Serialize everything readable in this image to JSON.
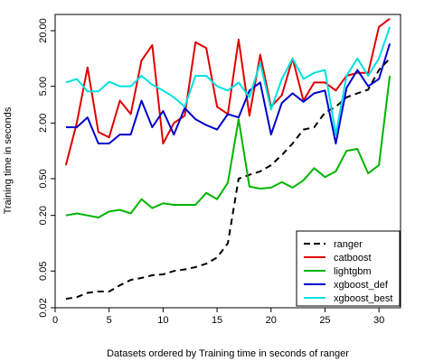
{
  "chart_data": {
    "type": "line",
    "title": "",
    "xlabel": "Datasets ordered by Training time in seconds of ranger",
    "ylabel": "Training time in seconds",
    "x": [
      1,
      2,
      3,
      4,
      5,
      6,
      7,
      8,
      9,
      10,
      11,
      12,
      13,
      14,
      15,
      16,
      17,
      18,
      19,
      20,
      21,
      22,
      23,
      24,
      25,
      26,
      27,
      28,
      29,
      30,
      31
    ],
    "xlim": [
      0,
      32
    ],
    "ylim": [
      0.02,
      30
    ],
    "yscale": "log",
    "xticks": [
      0,
      5,
      10,
      15,
      20,
      25,
      30
    ],
    "yticks": [
      0.02,
      0.05,
      0.2,
      0.5,
      2.0,
      5.0,
      20.0
    ],
    "ytick_labels": [
      "0.02",
      "0.05",
      "0.20",
      "0.50",
      "2.00",
      "5.00",
      "20.00"
    ],
    "grid": false,
    "legend_position": "bottom-right",
    "series": [
      {
        "name": "ranger",
        "color": "#000000",
        "dash": "dashed",
        "values": [
          0.025,
          0.026,
          0.029,
          0.03,
          0.03,
          0.035,
          0.04,
          0.042,
          0.045,
          0.046,
          0.05,
          0.052,
          0.055,
          0.06,
          0.07,
          0.1,
          0.5,
          0.55,
          0.6,
          0.7,
          0.9,
          1.2,
          1.7,
          1.8,
          2.6,
          3.0,
          3.8,
          4.2,
          4.6,
          7.5,
          10.0
        ]
      },
      {
        "name": "catboost",
        "color": "#e00000",
        "dash": "solid",
        "values": [
          0.7,
          2.0,
          8.0,
          1.6,
          1.4,
          3.5,
          2.5,
          9.5,
          14.0,
          1.2,
          2.0,
          2.4,
          15.0,
          13.0,
          3.0,
          2.5,
          16.0,
          2.4,
          11.0,
          3.0,
          4.0,
          10.0,
          3.5,
          5.5,
          5.5,
          4.5,
          6.5,
          7.0,
          7.0,
          22.0,
          27.0
        ]
      },
      {
        "name": "lightgbm",
        "color": "#00b400",
        "dash": "solid",
        "values": [
          0.2,
          0.21,
          0.2,
          0.19,
          0.22,
          0.23,
          0.21,
          0.3,
          0.24,
          0.27,
          0.26,
          0.26,
          0.26,
          0.35,
          0.3,
          0.45,
          2.2,
          0.41,
          0.39,
          0.4,
          0.46,
          0.4,
          0.48,
          0.65,
          0.52,
          0.6,
          1.0,
          1.05,
          0.57,
          0.7,
          6.5
        ]
      },
      {
        "name": "xgboost_def",
        "color": "#0000cc",
        "dash": "solid",
        "values": [
          1.8,
          1.8,
          2.3,
          1.2,
          1.2,
          1.5,
          1.5,
          3.5,
          1.8,
          2.7,
          1.5,
          2.9,
          2.2,
          1.9,
          1.7,
          2.5,
          2.3,
          4.5,
          5.5,
          1.5,
          3.3,
          4.2,
          3.4,
          4.2,
          4.5,
          1.2,
          4.8,
          7.5,
          5.0,
          6.0,
          14.5
        ]
      },
      {
        "name": "xgboost_best",
        "color": "#00e0e0",
        "dash": "solid",
        "values": [
          5.5,
          6.0,
          4.4,
          4.4,
          5.6,
          5.0,
          5.0,
          6.5,
          5.2,
          4.5,
          3.8,
          3.0,
          6.5,
          6.5,
          5.0,
          4.5,
          5.5,
          3.8,
          9.0,
          2.8,
          6.0,
          10.0,
          6.0,
          7.0,
          7.5,
          1.5,
          6.5,
          10.0,
          6.5,
          10.0,
          22.0
        ]
      }
    ]
  }
}
